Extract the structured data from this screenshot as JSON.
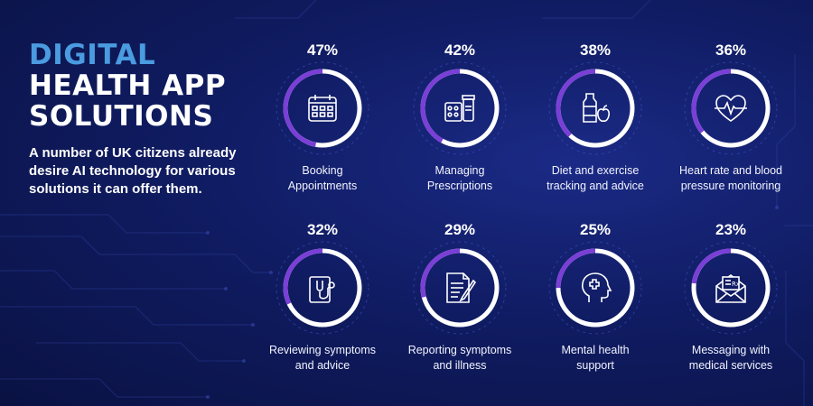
{
  "heading": {
    "line1": "DIGITAL",
    "line2": "HEALTH APP",
    "line3": "SOLUTIONS"
  },
  "intro": "A number of UK citizens already desire AI technology for various solutions it can offer them.",
  "colors": {
    "background": "#101c63",
    "accent_blue": "#4a9be0",
    "ring_purple": "#7a3fd6",
    "ring_white": "#ffffff"
  },
  "stats": [
    {
      "percent": "47%",
      "value": 47,
      "label_line1": "Booking",
      "label_line2": "Appointments",
      "icon": "calendar-icon"
    },
    {
      "percent": "42%",
      "value": 42,
      "label_line1": "Managing",
      "label_line2": "Prescriptions",
      "icon": "pills-icon"
    },
    {
      "percent": "38%",
      "value": 38,
      "label_line1": "Diet and exercise",
      "label_line2": "tracking and advice",
      "icon": "bottle-apple-icon"
    },
    {
      "percent": "36%",
      "value": 36,
      "label_line1": "Heart rate and blood",
      "label_line2": "pressure monitoring",
      "icon": "heart-rate-icon"
    },
    {
      "percent": "32%",
      "value": 32,
      "label_line1": "Reviewing symptoms",
      "label_line2": "and advice",
      "icon": "stethoscope-icon"
    },
    {
      "percent": "29%",
      "value": 29,
      "label_line1": "Reporting symptoms",
      "label_line2": "and illness",
      "icon": "document-pen-icon"
    },
    {
      "percent": "25%",
      "value": 25,
      "label_line1": "Mental health",
      "label_line2": "support",
      "icon": "head-cross-icon"
    },
    {
      "percent": "23%",
      "value": 23,
      "label_line1": "Messaging with",
      "label_line2": "medical services",
      "icon": "envelope-rx-icon"
    }
  ]
}
